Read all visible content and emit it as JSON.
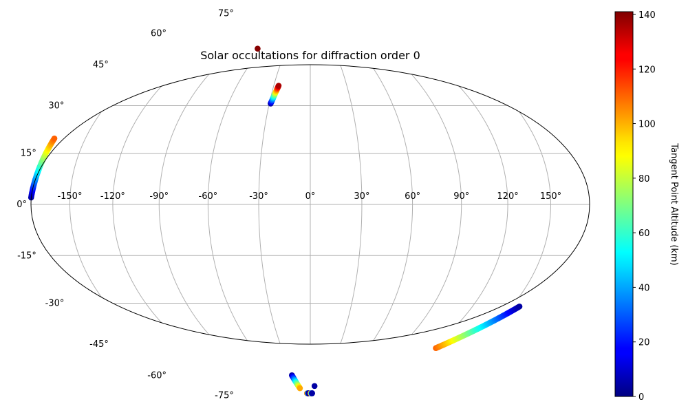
{
  "chart_data": {
    "type": "scatter",
    "projection": "hammer",
    "title": "Solar occultations for diffraction order 0",
    "grid": true,
    "longitude_ticks": [
      -150,
      -120,
      -90,
      -60,
      -30,
      0,
      30,
      60,
      90,
      120,
      150
    ],
    "longitude_tick_labels": [
      "-150°",
      "-120°",
      "-90°",
      "-60°",
      "-30°",
      "0°",
      "30°",
      "60°",
      "90°",
      "120°",
      "150°"
    ],
    "latitude_ticks": [
      75,
      60,
      45,
      30,
      15,
      0,
      -15,
      -30,
      -45,
      -60,
      -75
    ],
    "latitude_tick_labels": [
      "75°",
      "60°",
      "45°",
      "30°",
      "15°",
      "0°",
      "-15°",
      "-30°",
      "-45°",
      "-60°",
      "-75°"
    ],
    "colorbar": {
      "label": "Tangent Point Altitude (km)",
      "range": [
        0,
        141
      ],
      "ticks": [
        0,
        20,
        40,
        60,
        80,
        100,
        120,
        140
      ],
      "colormap": "jet"
    },
    "series": [
      {
        "lon_range": [
          -180,
          -174
        ],
        "lat_range": [
          2,
          20
        ],
        "alt_range": [
          5,
          110
        ]
      },
      {
        "lon_range": [
          -65,
          -65
        ],
        "lat_range": [
          66,
          66
        ],
        "alt_range": [
          140,
          140
        ]
      },
      {
        "lon_range": [
          -29,
          -26
        ],
        "lat_range": [
          42,
          50
        ],
        "alt_range": [
          5,
          135
        ]
      },
      {
        "lon_range": [
          124,
          156
        ],
        "lat_range": [
          -55,
          -34
        ],
        "alt_range": [
          110,
          5
        ]
      },
      {
        "lon_range": [
          -33,
          -33
        ],
        "lat_range": [
          -75,
          -82
        ],
        "alt_range": [
          5,
          100
        ]
      },
      {
        "lon_range": [
          -16,
          -9
        ],
        "lat_range": [
          -85,
          -85
        ],
        "alt_range": [
          125,
          5
        ]
      },
      {
        "lon_range": [
          1,
          9
        ],
        "lat_range": [
          -85,
          -85
        ],
        "alt_range": [
          130,
          5
        ]
      },
      {
        "lon_range": [
          12,
          12
        ],
        "lat_range": [
          -81,
          -81
        ],
        "alt_range": [
          5,
          5
        ]
      }
    ]
  }
}
